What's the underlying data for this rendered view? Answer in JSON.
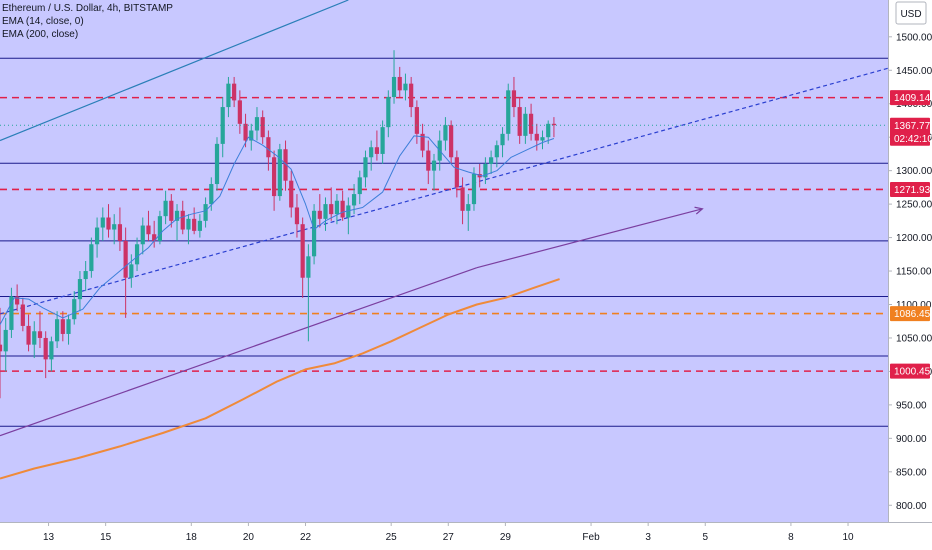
{
  "legend": {
    "title": "Ethereum / U.S. Dollar, 4h, BITSTAMP",
    "ema14": "EMA (14, close, 0)",
    "ema200": "EMA (200, close)"
  },
  "axis_unit": "USD",
  "colors": {
    "plot_bg": "#c8c8ff",
    "up": "#26a69a",
    "down": "#cc3366",
    "resistance": "#1a1a8c",
    "key_level": "#e0204a",
    "ema200_level": "#f08020",
    "ema14": "#3d7fd9",
    "ema200": "#ef8a3a",
    "trend_dashed": "#2a3fd0",
    "trend_purple": "#7b3fa0",
    "trend_top": "#2a7fb8",
    "price_badge": "#e0204a",
    "ema_badge": "#f08020"
  },
  "chart_data": {
    "type": "candlestick",
    "title": "Ethereum / U.S. Dollar, 4h, BITSTAMP",
    "y_ticks": [
      "800.00",
      "850.00",
      "900.00",
      "950.00",
      "1000.00",
      "1050.00",
      "1100.00",
      "1150.00",
      "1200.00",
      "1250.00",
      "1300.00",
      "1350.00",
      "1400.00",
      "1450.00",
      "1500.00"
    ],
    "x_ticks": [
      {
        "label": "13",
        "day": 13
      },
      {
        "label": "15",
        "day": 15
      },
      {
        "label": "18",
        "day": 18
      },
      {
        "label": "20",
        "day": 20
      },
      {
        "label": "22",
        "day": 22
      },
      {
        "label": "25",
        "day": 25
      },
      {
        "label": "27",
        "day": 27
      },
      {
        "label": "29",
        "day": 29
      },
      {
        "label": "Feb",
        "day": 32
      },
      {
        "label": "3",
        "day": 34
      },
      {
        "label": "5",
        "day": 36
      },
      {
        "label": "8",
        "day": 39
      },
      {
        "label": "10",
        "day": 41
      }
    ],
    "y_range": [
      775,
      1555
    ],
    "x_range_days": [
      11.3,
      42.4
    ],
    "horizontal_levels": [
      {
        "value": 1468,
        "style": "solid",
        "color_key": "resistance"
      },
      {
        "value": 1311,
        "style": "solid",
        "color_key": "resistance"
      },
      {
        "value": 1195,
        "style": "solid",
        "color_key": "resistance"
      },
      {
        "value": 1112,
        "style": "solid",
        "color_key": "resistance"
      },
      {
        "value": 1023,
        "style": "solid",
        "color_key": "resistance"
      },
      {
        "value": 918,
        "style": "solid",
        "color_key": "resistance"
      },
      {
        "value": 1409.14,
        "style": "dashed",
        "color_key": "key_level",
        "label": "1409.14"
      },
      {
        "value": 1271.93,
        "style": "dashed",
        "color_key": "key_level",
        "label": "1271.93"
      },
      {
        "value": 1086.45,
        "style": "dashed",
        "color_key": "ema200_level",
        "label": "1086.45"
      },
      {
        "value": 1000.45,
        "style": "dashed",
        "color_key": "key_level",
        "label": "1000.45"
      }
    ],
    "last_price": {
      "value": 1367.77,
      "label": "1367.77",
      "countdown": "02:42:10"
    },
    "trendlines": [
      {
        "from": [
          11.3,
          1086
        ],
        "to": [
          42.4,
          1453
        ],
        "style": "dashed",
        "color_key": "trend_dashed"
      },
      {
        "from": [
          11.3,
          904
        ],
        "to": [
          28.0,
          1155
        ],
        "style": "solid",
        "color_key": "trend_purple"
      },
      {
        "from": [
          28.0,
          1155
        ],
        "to": [
          35.9,
          1243
        ],
        "style": "solid",
        "color_key": "trend_purple",
        "arrow": true
      },
      {
        "from": [
          11.3,
          1345
        ],
        "to": [
          23.5,
          1555
        ],
        "style": "solid",
        "color_key": "trend_top"
      }
    ],
    "ema200": {
      "x": [
        11.3,
        12.5,
        14.0,
        15.5,
        17.0,
        18.5,
        19.8,
        21.0,
        22.0,
        23.0,
        24.0,
        25.0,
        26.0,
        27.0,
        28.0,
        29.0,
        30.0,
        30.9
      ],
      "y": [
        840,
        855,
        870,
        888,
        908,
        930,
        958,
        985,
        1003,
        1012,
        1027,
        1045,
        1065,
        1085,
        1100,
        1110,
        1125,
        1138
      ]
    },
    "ema14": {
      "x": [
        11.3,
        11.8,
        12.3,
        12.8,
        13.5,
        14.2,
        14.8,
        15.5,
        16.0,
        16.5,
        17.0,
        17.5,
        18.0,
        18.5,
        19.0,
        19.5,
        20.0,
        20.5,
        21.0,
        21.5,
        22.0,
        22.3,
        22.7,
        23.3,
        24.0,
        24.7,
        25.3,
        25.8,
        26.3,
        26.8,
        27.2,
        27.7,
        28.2,
        28.7,
        29.2,
        29.7,
        30.3,
        30.7
      ],
      "y": [
        1070,
        1110,
        1108,
        1095,
        1080,
        1093,
        1125,
        1150,
        1168,
        1185,
        1210,
        1228,
        1235,
        1240,
        1262,
        1310,
        1350,
        1338,
        1322,
        1302,
        1250,
        1212,
        1225,
        1238,
        1245,
        1268,
        1322,
        1352,
        1350,
        1325,
        1305,
        1298,
        1292,
        1300,
        1320,
        1330,
        1342,
        1348
      ]
    },
    "candles": [
      [
        11.3,
        1040,
        1095,
        960,
        1030
      ],
      [
        11.5,
        1030,
        1080,
        1000,
        1062
      ],
      [
        11.7,
        1062,
        1125,
        1050,
        1112
      ],
      [
        11.9,
        1112,
        1130,
        1090,
        1100
      ],
      [
        12.1,
        1100,
        1110,
        1060,
        1068
      ],
      [
        12.3,
        1068,
        1085,
        1030,
        1040
      ],
      [
        12.5,
        1040,
        1075,
        1020,
        1060
      ],
      [
        12.7,
        1060,
        1090,
        1035,
        1050
      ],
      [
        12.9,
        1050,
        1060,
        990,
        1018
      ],
      [
        13.1,
        1018,
        1052,
        1000,
        1045
      ],
      [
        13.3,
        1045,
        1090,
        1035,
        1078
      ],
      [
        13.5,
        1078,
        1090,
        1045,
        1056
      ],
      [
        13.7,
        1056,
        1085,
        1040,
        1078
      ],
      [
        13.9,
        1078,
        1120,
        1070,
        1108
      ],
      [
        14.1,
        1108,
        1150,
        1090,
        1138
      ],
      [
        14.3,
        1138,
        1165,
        1120,
        1150
      ],
      [
        14.5,
        1150,
        1200,
        1140,
        1190
      ],
      [
        14.7,
        1190,
        1230,
        1170,
        1215
      ],
      [
        14.9,
        1215,
        1245,
        1195,
        1230
      ],
      [
        15.1,
        1230,
        1250,
        1200,
        1212
      ],
      [
        15.3,
        1212,
        1235,
        1190,
        1220
      ],
      [
        15.5,
        1220,
        1245,
        1180,
        1195
      ],
      [
        15.7,
        1195,
        1215,
        1080,
        1140
      ],
      [
        15.9,
        1140,
        1175,
        1125,
        1160
      ],
      [
        16.1,
        1160,
        1200,
        1150,
        1190
      ],
      [
        16.3,
        1190,
        1230,
        1175,
        1218
      ],
      [
        16.5,
        1218,
        1240,
        1195,
        1205
      ],
      [
        16.7,
        1205,
        1225,
        1185,
        1195
      ],
      [
        16.9,
        1195,
        1240,
        1190,
        1232
      ],
      [
        17.1,
        1232,
        1270,
        1220,
        1255
      ],
      [
        17.3,
        1255,
        1265,
        1215,
        1225
      ],
      [
        17.5,
        1225,
        1250,
        1195,
        1240
      ],
      [
        17.7,
        1240,
        1255,
        1205,
        1212
      ],
      [
        17.9,
        1212,
        1235,
        1190,
        1228
      ],
      [
        18.1,
        1228,
        1245,
        1205,
        1210
      ],
      [
        18.3,
        1210,
        1235,
        1200,
        1225
      ],
      [
        18.5,
        1225,
        1260,
        1215,
        1250
      ],
      [
        18.7,
        1250,
        1290,
        1240,
        1280
      ],
      [
        18.9,
        1280,
        1350,
        1270,
        1340
      ],
      [
        19.1,
        1340,
        1410,
        1320,
        1395
      ],
      [
        19.3,
        1395,
        1440,
        1380,
        1430
      ],
      [
        19.5,
        1430,
        1440,
        1395,
        1405
      ],
      [
        19.7,
        1405,
        1420,
        1355,
        1370
      ],
      [
        19.9,
        1370,
        1385,
        1335,
        1345
      ],
      [
        20.1,
        1345,
        1370,
        1330,
        1360
      ],
      [
        20.3,
        1360,
        1395,
        1345,
        1380
      ],
      [
        20.5,
        1380,
        1390,
        1340,
        1350
      ],
      [
        20.7,
        1350,
        1360,
        1300,
        1320
      ],
      [
        20.9,
        1320,
        1330,
        1240,
        1262
      ],
      [
        21.1,
        1262,
        1340,
        1255,
        1332
      ],
      [
        21.3,
        1332,
        1345,
        1270,
        1285
      ],
      [
        21.5,
        1285,
        1300,
        1230,
        1245
      ],
      [
        21.7,
        1245,
        1265,
        1200,
        1220
      ],
      [
        21.9,
        1220,
        1230,
        1110,
        1140
      ],
      [
        22.1,
        1140,
        1190,
        1045,
        1172
      ],
      [
        22.3,
        1172,
        1250,
        1160,
        1240
      ],
      [
        22.5,
        1240,
        1265,
        1215,
        1228
      ],
      [
        22.7,
        1228,
        1260,
        1210,
        1250
      ],
      [
        22.9,
        1250,
        1275,
        1225,
        1235
      ],
      [
        23.1,
        1235,
        1265,
        1220,
        1255
      ],
      [
        23.3,
        1255,
        1270,
        1225,
        1230
      ],
      [
        23.5,
        1230,
        1260,
        1205,
        1248
      ],
      [
        23.7,
        1248,
        1280,
        1235,
        1265
      ],
      [
        23.9,
        1265,
        1300,
        1250,
        1290
      ],
      [
        24.1,
        1290,
        1330,
        1275,
        1320
      ],
      [
        24.3,
        1320,
        1345,
        1300,
        1335
      ],
      [
        24.5,
        1335,
        1360,
        1315,
        1325
      ],
      [
        24.7,
        1325,
        1375,
        1310,
        1365
      ],
      [
        24.9,
        1365,
        1420,
        1350,
        1410
      ],
      [
        25.1,
        1410,
        1480,
        1400,
        1440
      ],
      [
        25.3,
        1440,
        1455,
        1410,
        1420
      ],
      [
        25.5,
        1420,
        1445,
        1405,
        1430
      ],
      [
        25.7,
        1430,
        1440,
        1380,
        1395
      ],
      [
        25.9,
        1395,
        1405,
        1340,
        1355
      ],
      [
        26.1,
        1355,
        1370,
        1320,
        1330
      ],
      [
        26.3,
        1330,
        1345,
        1280,
        1300
      ],
      [
        26.5,
        1300,
        1325,
        1270,
        1315
      ],
      [
        26.7,
        1315,
        1360,
        1300,
        1345
      ],
      [
        26.9,
        1345,
        1380,
        1330,
        1368
      ],
      [
        27.1,
        1368,
        1375,
        1310,
        1320
      ],
      [
        27.3,
        1320,
        1330,
        1260,
        1275
      ],
      [
        27.5,
        1275,
        1290,
        1220,
        1240
      ],
      [
        27.7,
        1240,
        1265,
        1210,
        1250
      ],
      [
        27.9,
        1250,
        1305,
        1240,
        1295
      ],
      [
        28.1,
        1295,
        1310,
        1275,
        1290
      ],
      [
        28.3,
        1290,
        1320,
        1280,
        1310
      ],
      [
        28.5,
        1310,
        1330,
        1295,
        1320
      ],
      [
        28.7,
        1320,
        1345,
        1305,
        1338
      ],
      [
        28.9,
        1338,
        1365,
        1320,
        1355
      ],
      [
        29.1,
        1355,
        1430,
        1345,
        1420
      ],
      [
        29.3,
        1420,
        1440,
        1380,
        1395
      ],
      [
        29.5,
        1395,
        1410,
        1340,
        1352
      ],
      [
        29.7,
        1352,
        1395,
        1340,
        1385
      ],
      [
        29.9,
        1385,
        1400,
        1345,
        1355
      ],
      [
        30.1,
        1355,
        1370,
        1330,
        1345
      ],
      [
        30.3,
        1345,
        1360,
        1332,
        1350
      ],
      [
        30.5,
        1350,
        1375,
        1340,
        1370
      ],
      [
        30.7,
        1370,
        1380,
        1350,
        1368
      ]
    ]
  }
}
